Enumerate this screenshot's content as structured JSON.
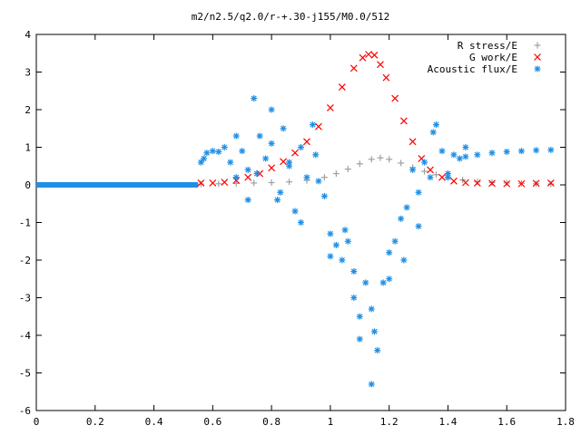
{
  "chart_data": {
    "type": "scatter",
    "title": "m2/n2.5/q2.0/r-+.30-j155/M0.0/512",
    "xlabel": "",
    "ylabel": "",
    "xlim": [
      0,
      1.8
    ],
    "ylim": [
      -6,
      4
    ],
    "x_ticks": [
      0,
      0.2,
      0.4,
      0.6,
      0.8,
      1,
      1.2,
      1.4,
      1.6,
      1.8
    ],
    "x_tick_labels": [
      "0",
      "0.2",
      "0.4",
      "0.6",
      "0.8",
      "1",
      "1.2",
      "1.4",
      "1.6",
      "1.8"
    ],
    "y_ticks": [
      -6,
      -5,
      -4,
      -3,
      -2,
      -1,
      0,
      1,
      2,
      3,
      4
    ],
    "y_tick_labels": [
      "-6",
      "-5",
      "-4",
      "-3",
      "-2",
      "-1",
      "0",
      "1",
      "2",
      "3",
      "4"
    ],
    "grid": false,
    "legend_position": "top-right",
    "series": [
      {
        "name": "R stress/E",
        "marker": "plus",
        "color": "#a0a0a0",
        "x": [
          0.56,
          0.62,
          0.68,
          0.74,
          0.8,
          0.86,
          0.92,
          0.98,
          1.02,
          1.06,
          1.1,
          1.14,
          1.17,
          1.2,
          1.24,
          1.28,
          1.32,
          1.36,
          1.4,
          1.45,
          1.5,
          1.55,
          1.6,
          1.65,
          1.7,
          1.75
        ],
        "y": [
          0.02,
          0.03,
          0.04,
          0.05,
          0.06,
          0.08,
          0.12,
          0.2,
          0.3,
          0.42,
          0.56,
          0.68,
          0.72,
          0.68,
          0.58,
          0.46,
          0.36,
          0.27,
          0.2,
          0.13,
          0.08,
          0.06,
          0.05,
          0.04,
          0.03,
          0.02
        ]
      },
      {
        "name": "G work/E",
        "marker": "cross",
        "color": "#ff0000",
        "x": [
          0.56,
          0.6,
          0.64,
          0.68,
          0.72,
          0.76,
          0.8,
          0.84,
          0.88,
          0.92,
          0.96,
          1.0,
          1.04,
          1.08,
          1.11,
          1.13,
          1.15,
          1.17,
          1.19,
          1.22,
          1.25,
          1.28,
          1.31,
          1.34,
          1.38,
          1.42,
          1.46,
          1.5,
          1.55,
          1.6,
          1.65,
          1.7,
          1.75
        ],
        "y": [
          0.05,
          0.05,
          0.07,
          0.12,
          0.2,
          0.3,
          0.45,
          0.62,
          0.85,
          1.15,
          1.55,
          2.05,
          2.6,
          3.1,
          3.38,
          3.47,
          3.45,
          3.2,
          2.85,
          2.3,
          1.7,
          1.15,
          0.7,
          0.4,
          0.2,
          0.1,
          0.06,
          0.05,
          0.04,
          0.03,
          0.03,
          0.04,
          0.05
        ]
      },
      {
        "name": "Acoustic flux/E",
        "marker": "star",
        "color": "#1f8fe6",
        "x": [
          0.56,
          0.57,
          0.58,
          0.6,
          0.62,
          0.64,
          0.66,
          0.68,
          0.7,
          0.72,
          0.74,
          0.76,
          0.78,
          0.8,
          0.82,
          0.84,
          0.86,
          0.88,
          0.9,
          0.92,
          0.94,
          0.96,
          0.98,
          1.0,
          1.02,
          1.04,
          1.06,
          1.08,
          1.1,
          1.12,
          1.14,
          1.16,
          1.18,
          1.2,
          1.22,
          1.24,
          1.26,
          1.28,
          1.3,
          1.32,
          1.34,
          1.36,
          1.38,
          1.4,
          1.42,
          1.44,
          1.46,
          1.5,
          1.55,
          1.6,
          1.65,
          1.7,
          1.75,
          0.75,
          0.72,
          0.8,
          0.86,
          0.9,
          0.95,
          1.0,
          1.05,
          1.1,
          1.15,
          1.2,
          1.25,
          1.3,
          1.35,
          1.4,
          1.46,
          0.68,
          0.83,
          1.08,
          1.14
        ],
        "y": [
          0.6,
          0.7,
          0.85,
          0.9,
          0.88,
          1.0,
          0.6,
          1.3,
          0.9,
          0.4,
          2.3,
          1.3,
          0.7,
          1.1,
          -0.4,
          1.5,
          0.6,
          -0.7,
          1.0,
          0.2,
          1.6,
          0.1,
          -0.3,
          -1.3,
          -1.6,
          -2.0,
          -1.5,
          -2.3,
          -3.5,
          -2.6,
          -5.3,
          -4.4,
          -2.6,
          -1.8,
          -1.5,
          -0.9,
          -0.6,
          0.4,
          -0.2,
          0.6,
          0.2,
          1.6,
          0.9,
          0.3,
          0.8,
          0.7,
          0.75,
          0.8,
          0.85,
          0.88,
          0.9,
          0.92,
          0.93,
          0.3,
          -0.4,
          2.0,
          0.5,
          -1.0,
          0.8,
          -1.9,
          -1.2,
          -4.1,
          -3.9,
          -2.5,
          -2.0,
          -1.1,
          1.4,
          0.2,
          1.0,
          0.2,
          -0.2,
          -3.0,
          -3.3
        ]
      }
    ]
  }
}
